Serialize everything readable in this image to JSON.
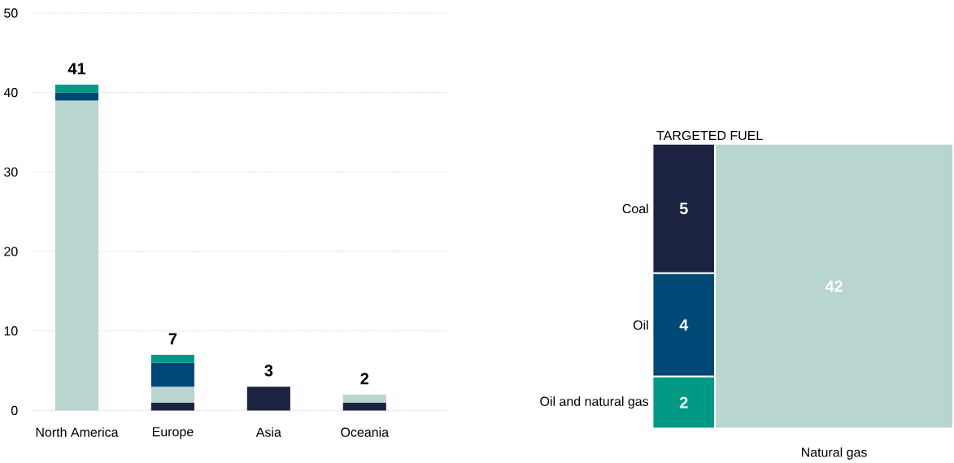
{
  "chart_data": [
    {
      "type": "bar",
      "stacked": true,
      "categories": [
        "North America",
        "Europe",
        "Asia",
        "Oceania"
      ],
      "series": [
        {
          "color": "#1c2340",
          "values": [
            null,
            1,
            3,
            1
          ]
        },
        {
          "color": "#b8d5cf",
          "values": [
            39,
            2,
            null,
            1
          ]
        },
        {
          "color": "#004876",
          "values": [
            1,
            3,
            null,
            null
          ]
        },
        {
          "color": "#009a84",
          "values": [
            1,
            1,
            null,
            null
          ]
        }
      ],
      "totals": [
        "41",
        "7",
        "3",
        "2"
      ],
      "ylim": [
        0,
        50
      ],
      "yticks": [
        0,
        10,
        20,
        30,
        40,
        50
      ],
      "grid": "y"
    },
    {
      "type": "other",
      "title": "TARGETED FUEL",
      "categories": [
        "Coal",
        "Oil",
        "Oil and natural gas",
        "Natural gas"
      ],
      "values": [
        5,
        4,
        2,
        42
      ],
      "colors": [
        "#1c2340",
        "#004876",
        "#009a84",
        "#b8d5cf"
      ],
      "data_labels": true
    }
  ]
}
